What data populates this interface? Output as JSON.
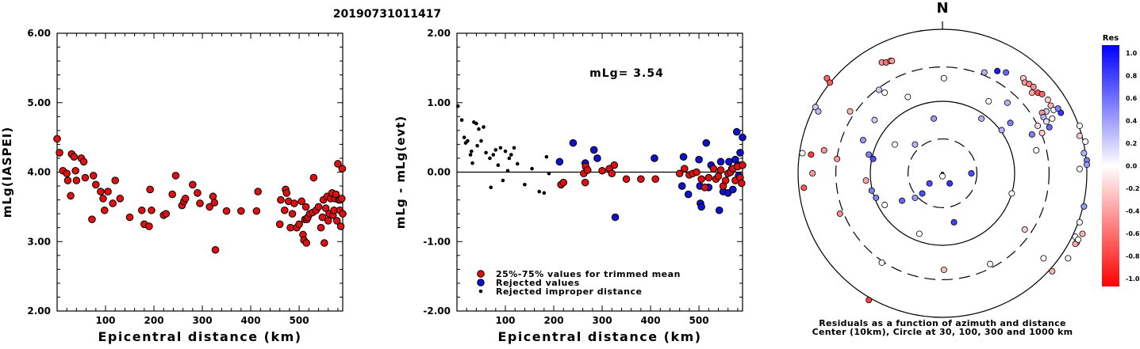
{
  "title": "20190731011417",
  "chart_data": [
    {
      "type": "scatter",
      "xlabel": "Epicentral distance (km)",
      "ylabel": "mLg(IASPEI)",
      "xlim": [
        0,
        590
      ],
      "ylim": [
        2.0,
        6.0
      ],
      "yticks": [
        "2.00",
        "3.00",
        "4.00",
        "5.00",
        "6.00"
      ],
      "xticks": [
        {
          "value": 100,
          "label": "100"
        },
        {
          "value": 200,
          "label": "200"
        },
        {
          "value": 300,
          "label": "300"
        },
        {
          "value": 400,
          "label": "400"
        },
        {
          "value": 500,
          "label": "500"
        }
      ],
      "marker_color": "#dd1111",
      "points": [
        [
          0,
          4.48
        ],
        [
          5,
          4.28
        ],
        [
          12,
          4.02
        ],
        [
          20,
          3.98
        ],
        [
          22,
          3.88
        ],
        [
          28,
          3.66
        ],
        [
          30,
          4.26
        ],
        [
          35,
          4.22
        ],
        [
          38,
          4.02
        ],
        [
          40,
          3.88
        ],
        [
          50,
          4.2
        ],
        [
          55,
          4.15
        ],
        [
          58,
          3.92
        ],
        [
          72,
          3.32
        ],
        [
          75,
          3.95
        ],
        [
          80,
          3.82
        ],
        [
          90,
          3.72
        ],
        [
          95,
          3.62
        ],
        [
          98,
          3.45
        ],
        [
          105,
          3.72
        ],
        [
          115,
          3.55
        ],
        [
          120,
          3.88
        ],
        [
          130,
          3.62
        ],
        [
          150,
          3.35
        ],
        [
          175,
          3.45
        ],
        [
          180,
          3.25
        ],
        [
          190,
          3.22
        ],
        [
          192,
          3.75
        ],
        [
          195,
          3.45
        ],
        [
          220,
          3.38
        ],
        [
          225,
          3.4
        ],
        [
          238,
          3.68
        ],
        [
          245,
          3.95
        ],
        [
          258,
          3.52
        ],
        [
          262,
          3.58
        ],
        [
          265,
          3.62
        ],
        [
          280,
          3.82
        ],
        [
          290,
          3.7
        ],
        [
          295,
          3.55
        ],
        [
          315,
          3.5
        ],
        [
          322,
          3.65
        ],
        [
          325,
          3.56
        ],
        [
          327,
          2.88
        ],
        [
          350,
          3.44
        ],
        [
          380,
          3.44
        ],
        [
          412,
          3.44
        ],
        [
          415,
          3.72
        ],
        [
          460,
          3.25
        ],
        [
          462,
          3.6
        ],
        [
          470,
          3.45
        ],
        [
          472,
          3.75
        ],
        [
          474,
          3.7
        ],
        [
          478,
          3.58
        ],
        [
          482,
          3.2
        ],
        [
          486,
          3.4
        ],
        [
          490,
          3.55
        ],
        [
          495,
          3.2
        ],
        [
          500,
          3.25
        ],
        [
          505,
          3.58
        ],
        [
          508,
          3.1
        ],
        [
          510,
          3.02
        ],
        [
          512,
          3.32
        ],
        [
          514,
          3.5
        ],
        [
          515,
          2.98
        ],
        [
          516,
          3.32
        ],
        [
          518,
          3.35
        ],
        [
          522,
          3.4
        ],
        [
          528,
          3.42
        ],
        [
          530,
          3.92
        ],
        [
          535,
          3.45
        ],
        [
          540,
          3.5
        ],
        [
          545,
          3.2
        ],
        [
          548,
          3.35
        ],
        [
          550,
          3.6
        ],
        [
          552,
          2.98
        ],
        [
          555,
          3.48
        ],
        [
          558,
          3.65
        ],
        [
          560,
          3.3
        ],
        [
          562,
          3.4
        ],
        [
          565,
          3.62
        ],
        [
          568,
          3.7
        ],
        [
          570,
          3.38
        ],
        [
          572,
          3.45
        ],
        [
          574,
          3.62
        ],
        [
          576,
          3.68
        ],
        [
          578,
          3.3
        ],
        [
          580,
          4.12
        ],
        [
          582,
          3.6
        ],
        [
          584,
          3.45
        ],
        [
          585,
          3.6
        ],
        [
          586,
          3.22
        ],
        [
          588,
          3.62
        ],
        [
          589,
          4.05
        ],
        [
          590,
          3.4
        ]
      ]
    },
    {
      "type": "scatter",
      "xlabel": "Epicentral distance (km)",
      "ylabel": "mLg - mLg(evt)",
      "xlim": [
        0,
        590
      ],
      "ylim": [
        -2.0,
        2.0
      ],
      "yticks": [
        "-2.00",
        "-1.00",
        "0.00",
        "1.00",
        "2.00"
      ],
      "xticks": [
        {
          "value": 100,
          "label": "100"
        },
        {
          "value": 200,
          "label": "200"
        },
        {
          "value": 300,
          "label": "300"
        },
        {
          "value": 400,
          "label": "400"
        },
        {
          "value": 500,
          "label": "500"
        }
      ],
      "annotation": "mLg= 3.54",
      "legend": [
        {
          "label": "25%-75% values for trimmed mean",
          "color": "#dd1111",
          "kind": "big"
        },
        {
          "label": "Rejected values",
          "color": "#1111cc",
          "kind": "big"
        },
        {
          "label": "Rejected improper distance",
          "color": "#000000",
          "kind": "small"
        }
      ],
      "used": [
        [
          215,
          -0.18
        ],
        [
          220,
          -0.15
        ],
        [
          262,
          -0.02
        ],
        [
          265,
          -0.15
        ],
        [
          266,
          0.08
        ],
        [
          270,
          0.03
        ],
        [
          300,
          0.02
        ],
        [
          315,
          0.05
        ],
        [
          320,
          -0.02
        ],
        [
          325,
          0.1
        ],
        [
          350,
          -0.1
        ],
        [
          380,
          -0.1
        ],
        [
          410,
          -0.1
        ],
        [
          460,
          -0.02
        ],
        [
          470,
          0.05
        ],
        [
          480,
          -0.04
        ],
        [
          487,
          -0.02
        ],
        [
          495,
          0.0
        ],
        [
          505,
          -0.1
        ],
        [
          512,
          -0.22
        ],
        [
          520,
          -0.08
        ],
        [
          530,
          0.05
        ],
        [
          535,
          -0.1
        ],
        [
          540,
          -0.06
        ],
        [
          545,
          0.03
        ],
        [
          550,
          -0.2
        ],
        [
          555,
          -0.12
        ],
        [
          560,
          -0.02
        ],
        [
          565,
          0.0
        ],
        [
          570,
          0.05
        ],
        [
          575,
          -0.12
        ],
        [
          580,
          0.08
        ],
        [
          585,
          -0.08
        ],
        [
          588,
          -0.16
        ],
        [
          590,
          0.1
        ]
      ],
      "rejected": [
        [
          212,
          0.15
        ],
        [
          240,
          0.42
        ],
        [
          265,
          0.13
        ],
        [
          283,
          0.32
        ],
        [
          290,
          0.2
        ],
        [
          327,
          -0.65
        ],
        [
          408,
          0.2
        ],
        [
          465,
          -0.2
        ],
        [
          468,
          0.22
        ],
        [
          478,
          -0.32
        ],
        [
          500,
          0.18
        ],
        [
          502,
          -0.2
        ],
        [
          503,
          -0.45
        ],
        [
          505,
          -0.5
        ],
        [
          515,
          0.42
        ],
        [
          520,
          -0.22
        ],
        [
          525,
          0.1
        ],
        [
          542,
          -0.55
        ],
        [
          545,
          0.15
        ],
        [
          550,
          -0.28
        ],
        [
          560,
          -0.3
        ],
        [
          562,
          0.15
        ],
        [
          568,
          0.05
        ],
        [
          570,
          -0.25
        ],
        [
          575,
          0.18
        ],
        [
          578,
          0.58
        ],
        [
          580,
          0.1
        ],
        [
          582,
          -0.05
        ],
        [
          585,
          0.28
        ],
        [
          588,
          0.1
        ],
        [
          590,
          0.5
        ]
      ],
      "improper": [
        [
          2,
          0.95
        ],
        [
          10,
          0.75
        ],
        [
          15,
          0.5
        ],
        [
          18,
          0.42
        ],
        [
          22,
          0.45
        ],
        [
          28,
          0.25
        ],
        [
          30,
          0.3
        ],
        [
          32,
          0.13
        ],
        [
          35,
          0.72
        ],
        [
          40,
          0.7
        ],
        [
          42,
          0.38
        ],
        [
          45,
          0.62
        ],
        [
          50,
          0.45
        ],
        [
          55,
          0.65
        ],
        [
          60,
          0.28
        ],
        [
          68,
          0.2
        ],
        [
          70,
          -0.22
        ],
        [
          75,
          0.25
        ],
        [
          80,
          0.32
        ],
        [
          85,
          0.1
        ],
        [
          90,
          0.35
        ],
        [
          95,
          -0.12
        ],
        [
          100,
          0.3
        ],
        [
          105,
          0.02
        ],
        [
          108,
          0.2
        ],
        [
          112,
          0.25
        ],
        [
          118,
          0.35
        ],
        [
          125,
          0.12
        ],
        [
          140,
          -0.18
        ],
        [
          155,
          0.05
        ],
        [
          170,
          -0.28
        ],
        [
          180,
          -0.3
        ],
        [
          185,
          0.22
        ],
        [
          190,
          -0.02
        ]
      ]
    },
    {
      "type": "polar",
      "north_label": "N",
      "caption_lines": [
        "Residuals as a function of azimuth and distance",
        "Center (10km), Circle at 30, 100, 300 and 1000 km"
      ],
      "rings": [
        {
          "km": 30,
          "style": "dashed"
        },
        {
          "km": 100,
          "style": "solid"
        },
        {
          "km": 300,
          "style": "dashed"
        },
        {
          "km": 1000,
          "style": "solid"
        }
      ],
      "points_rxy": [
        [
          -0.42,
          0.77,
          -0.45
        ],
        [
          -0.39,
          0.77,
          -0.55
        ],
        [
          -0.36,
          0.78,
          -0.5
        ],
        [
          -0.35,
          0.78,
          -0.4
        ],
        [
          -0.8,
          0.66,
          -0.6
        ],
        [
          -0.78,
          0.63,
          -0.65
        ],
        [
          -0.88,
          0.46,
          0.2
        ],
        [
          -0.86,
          0.43,
          0.25
        ],
        [
          -0.64,
          0.43,
          -0.3
        ],
        [
          0.01,
          0.66,
          0.0
        ],
        [
          0.29,
          0.7,
          0.3
        ],
        [
          0.38,
          0.71,
          0.9
        ],
        [
          0.44,
          0.7,
          0.6
        ],
        [
          0.56,
          0.66,
          -0.2
        ],
        [
          0.57,
          0.63,
          -0.4
        ],
        [
          0.6,
          0.62,
          -0.5
        ],
        [
          0.63,
          0.6,
          -0.45
        ],
        [
          0.62,
          0.56,
          -0.35
        ],
        [
          0.66,
          0.56,
          -0.7
        ],
        [
          0.69,
          0.55,
          -0.6
        ],
        [
          0.73,
          0.51,
          -0.2
        ],
        [
          0.75,
          0.47,
          -0.3
        ],
        [
          0.77,
          0.44,
          0.0
        ],
        [
          0.72,
          0.43,
          0.2
        ],
        [
          0.82,
          0.42,
          0.8
        ],
        [
          0.8,
          0.45,
          0.5
        ],
        [
          0.69,
          0.42,
          -0.4
        ],
        [
          0.7,
          0.39,
          0.3
        ],
        [
          0.72,
          0.36,
          0.1
        ],
        [
          0.76,
          0.38,
          0.0
        ],
        [
          0.74,
          0.32,
          0.6
        ],
        [
          0.69,
          0.28,
          -0.2
        ],
        [
          0.62,
          0.27,
          0.5
        ],
        [
          0.66,
          0.33,
          -0.15
        ],
        [
          0.32,
          0.5,
          0.0
        ],
        [
          0.45,
          0.49,
          0.3
        ],
        [
          0.47,
          0.35,
          0.5
        ],
        [
          0.41,
          0.3,
          0.3
        ],
        [
          0.65,
          0.16,
          0.0
        ],
        [
          0.95,
          0.33,
          0.0
        ],
        [
          0.95,
          0.26,
          -0.2
        ],
        [
          0.99,
          0.22,
          0.0
        ],
        [
          0.98,
          0.14,
          0.3
        ],
        [
          1.0,
          0.09,
          0.5
        ],
        [
          1.0,
          0.06,
          0.4
        ],
        [
          0.95,
          0.03,
          0.0
        ],
        [
          0.98,
          -0.23,
          0.4
        ],
        [
          0.95,
          -0.34,
          0.0
        ],
        [
          0.97,
          -0.42,
          -0.3
        ],
        [
          0.92,
          -0.44,
          0.0
        ],
        [
          0.93,
          -0.48,
          -0.4
        ],
        [
          0.92,
          -0.49,
          -0.35
        ],
        [
          0.94,
          -0.46,
          0.0
        ],
        [
          0.87,
          -0.59,
          0.0
        ],
        [
          0.76,
          -0.68,
          -0.3
        ],
        [
          0.7,
          -0.59,
          0.0
        ],
        [
          0.57,
          -0.39,
          -0.2
        ],
        [
          0.33,
          -0.63,
          0.0
        ],
        [
          0.01,
          -0.67,
          -0.25
        ],
        [
          -0.42,
          -0.62,
          0.0
        ],
        [
          -0.51,
          -0.88,
          -0.75
        ],
        [
          -0.71,
          -0.28,
          -0.45
        ],
        [
          -0.96,
          -0.1,
          -0.65
        ],
        [
          -0.9,
          0.0,
          -0.4
        ],
        [
          -0.97,
          0.14,
          0.0
        ],
        [
          -0.91,
          0.13,
          -0.75
        ],
        [
          -0.82,
          0.16,
          -0.4
        ],
        [
          -0.73,
          0.1,
          -0.4
        ],
        [
          -0.55,
          0.23,
          0.4
        ],
        [
          -0.47,
          0.37,
          0.2
        ],
        [
          -0.44,
          0.58,
          0.2
        ],
        [
          -0.4,
          0.56,
          0.0
        ],
        [
          -0.24,
          0.53,
          0.0
        ],
        [
          -0.06,
          0.38,
          0.4
        ],
        [
          0.27,
          0.38,
          0.3
        ],
        [
          -0.33,
          0.2,
          0.0
        ],
        [
          -0.19,
          0.2,
          0.3
        ],
        [
          -0.51,
          0.13,
          0.5
        ],
        [
          -0.48,
          0.1,
          0.7
        ],
        [
          -0.53,
          -0.05,
          -0.35
        ],
        [
          -0.49,
          -0.12,
          0.5
        ],
        [
          -0.46,
          -0.17,
          0.5
        ],
        [
          -0.4,
          -0.22,
          0.0
        ],
        [
          -0.28,
          -0.19,
          0.6
        ],
        [
          -0.19,
          -0.17,
          0.4
        ],
        [
          -0.14,
          -0.14,
          0.7
        ],
        [
          -0.09,
          -0.07,
          0.7
        ],
        [
          0.0,
          -0.02,
          0.0
        ],
        [
          0.05,
          -0.07,
          0.8
        ],
        [
          0.2,
          0.0,
          0.7
        ],
        [
          -0.16,
          -0.42,
          0.0
        ],
        [
          0.08,
          -0.34,
          0.75
        ],
        [
          0.48,
          -0.14,
          0.0
        ]
      ]
    },
    {
      "type": "colorbar",
      "label": "Res",
      "ticks": [
        "1.0",
        "0.8",
        "0.6",
        "0.4",
        "0.2",
        "0.0",
        "-0.2",
        "-0.4",
        "-0.6",
        "-0.8",
        "-1.0"
      ],
      "top_color": "#0000ff",
      "mid_color": "#ffffff",
      "bottom_color": "#ff0000"
    }
  ]
}
